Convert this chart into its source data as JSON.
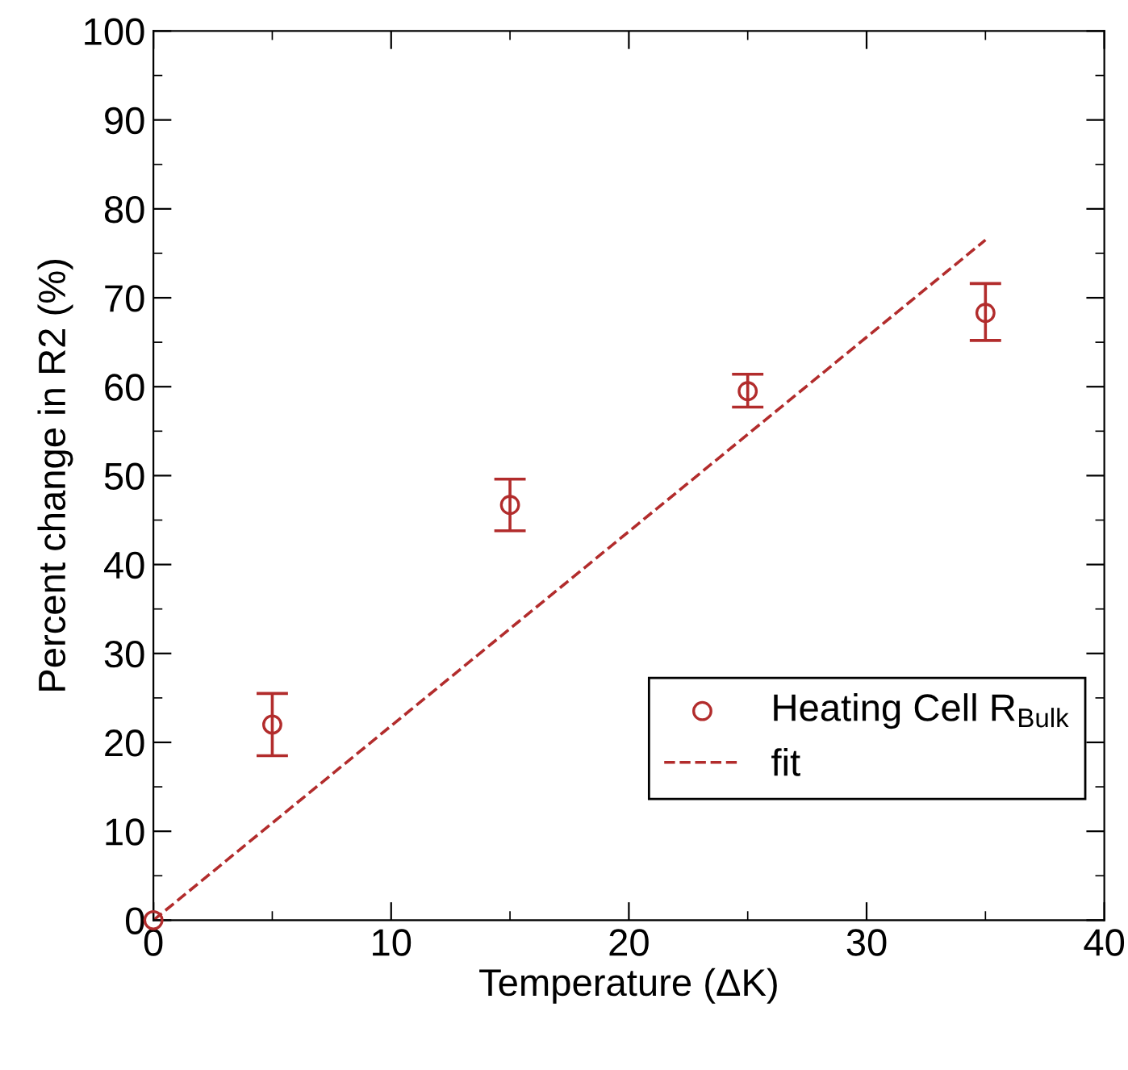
{
  "chart_data": {
    "type": "scatter",
    "xlabel": "Temperature (ΔK)",
    "ylabel": "Percent change in R2 (%)",
    "xlim": [
      0,
      40
    ],
    "ylim": [
      0,
      100
    ],
    "xticks": [
      0,
      10,
      20,
      30,
      40
    ],
    "yticks": [
      0,
      10,
      20,
      30,
      40,
      50,
      60,
      70,
      80,
      90,
      100
    ],
    "grid": false,
    "legend": "bottom right",
    "series": [
      {
        "name": "Heating Cell R$_{Bulk}$",
        "color": "#b22c2c",
        "marker": "circle",
        "x": [
          0,
          5,
          15,
          25,
          35
        ],
        "values": [
          0,
          22,
          46.7,
          59.5,
          68.3
        ],
        "errors": [
          null,
          [
            18.5,
            25.5
          ],
          [
            43.8,
            49.6
          ],
          [
            57.7,
            61.4
          ],
          [
            65.2,
            71.6
          ]
        ]
      },
      {
        "name": "fit",
        "type": "line",
        "color": "#b22c2c",
        "line_style": "dashed",
        "marker": "none",
        "x": [
          0,
          35
        ],
        "values": [
          0,
          76.5
        ]
      }
    ]
  }
}
